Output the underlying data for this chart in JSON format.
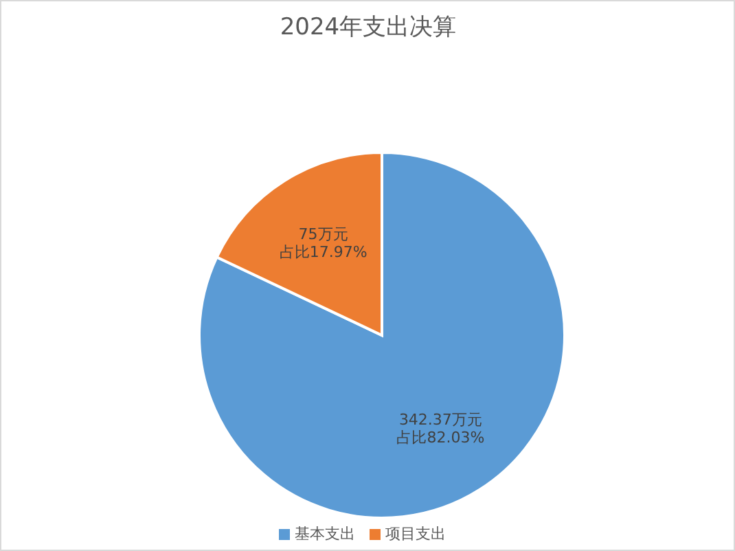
{
  "chart_data": {
    "type": "pie",
    "title": "2024年支出决算",
    "categories": [
      "基本支出",
      "项目支出"
    ],
    "values": [
      342.37,
      75
    ],
    "colors": [
      "#5b9bd5",
      "#ed7d31"
    ],
    "value_labels": [
      "342.37万元占比82.03%",
      "75万元占比17.97%"
    ],
    "legend": "bottom"
  }
}
